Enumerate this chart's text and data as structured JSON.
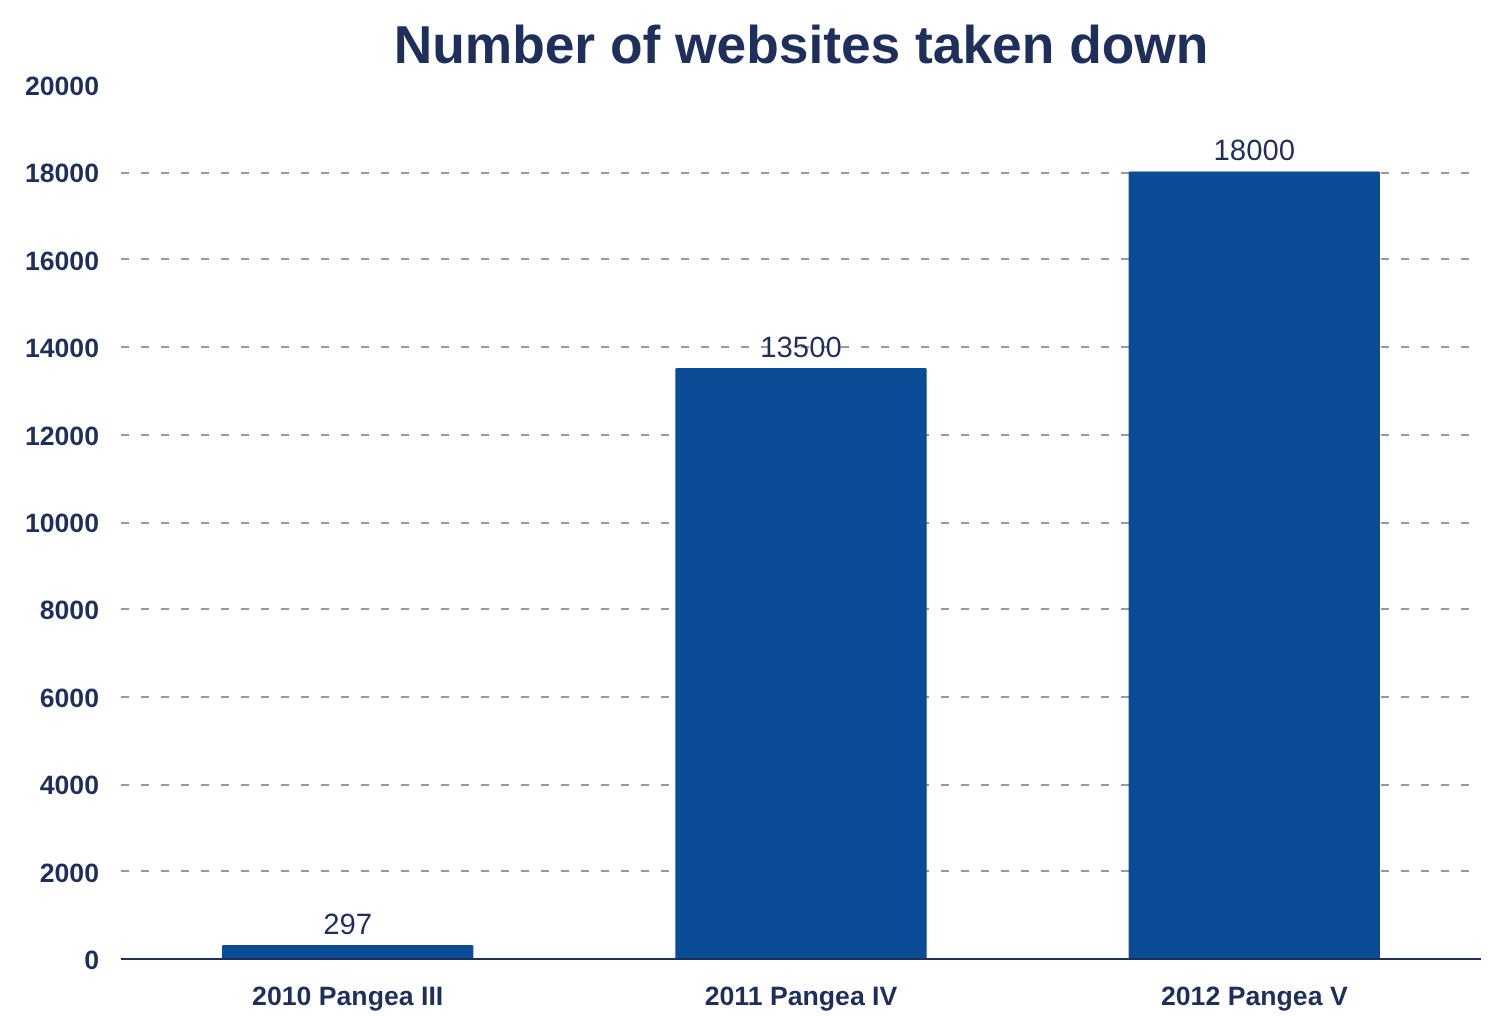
{
  "chart_data": {
    "type": "bar",
    "title": "Number of websites taken down",
    "categories": [
      "2010 Pangea III",
      "2011 Pangea IV",
      "2012 Pangea V"
    ],
    "values": [
      297,
      13500,
      18000
    ],
    "color": "#0b4c96",
    "data_labels": true,
    "ylim": [
      0,
      20000
    ],
    "yticks": [
      0,
      2000,
      4000,
      6000,
      8000,
      10000,
      12000,
      14000,
      16000,
      18000,
      20000
    ],
    "grid": "y"
  }
}
